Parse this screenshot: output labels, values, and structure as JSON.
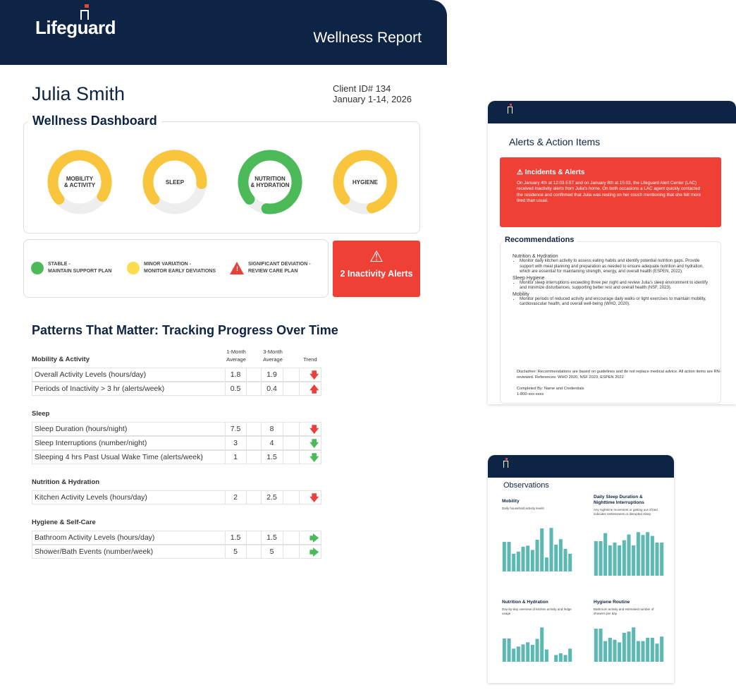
{
  "header": {
    "logo": "Lifeguard",
    "report_title": "Wellness Report"
  },
  "client": {
    "name": "Julia Smith",
    "id": "Client ID# 134",
    "period": "January 1-14, 2026"
  },
  "dashboard": {
    "title": "Wellness Dashboard",
    "gauges": [
      {
        "label1": "MOBILITY",
        "label2": "& ACTIVITY",
        "percent": 70,
        "color": "#f8c53c"
      },
      {
        "label1": "SLEEP",
        "label2": "",
        "percent": 62,
        "color": "#f8c53c"
      },
      {
        "label1": "NUTRITION",
        "label2": "& HYDRATION",
        "percent": 88,
        "color": "#4dba5a"
      },
      {
        "label1": "HYGIENE",
        "label2": "",
        "percent": 82,
        "color": "#f8c53c"
      }
    ]
  },
  "legend": [
    {
      "l1": "STABLE -",
      "l2": "MAINTAIN SUPPORT PLAN",
      "color": "#4dba5a"
    },
    {
      "l1": "MINOR VARIATION -",
      "l2": "MONITOR EARLY DEVIATIONS",
      "color": "#fddc4f"
    },
    {
      "l1": "SIGNIFICANT DEVIATION -",
      "l2": "REVIEW CARE PLAN",
      "color": "#e8413a"
    }
  ],
  "alert_button": {
    "icon": "warning-icon",
    "label": "2 Inactivity Alerts"
  },
  "patterns": {
    "title": "Patterns That Matter: Tracking Progress Over Time",
    "col1": [
      "1-Month",
      "Average"
    ],
    "col2": [
      "3-Month",
      "Average"
    ],
    "col3": "Trend",
    "sections": [
      {
        "name": "Mobility & Activity",
        "rows": [
          {
            "label": "Overall Activity Levels (hours/day)",
            "m1": "1.8",
            "m3": "1.9",
            "trend": "down",
            "color": "#e8413a"
          },
          {
            "label": "Periods of Inactivity > 3 hr (alerts/week)",
            "m1": "0.5",
            "m3": "0.4",
            "trend": "up",
            "color": "#e8413a"
          }
        ]
      },
      {
        "name": "Sleep",
        "rows": [
          {
            "label": "Sleep Duration (hours/night)",
            "m1": "7.5",
            "m3": "8",
            "trend": "down",
            "color": "#e8413a"
          },
          {
            "label": "Sleep Interruptions (number/night)",
            "m1": "3",
            "m3": "4",
            "trend": "down",
            "color": "#4dba5a"
          },
          {
            "label": "Sleeping 4 hrs Past Usual Wake Time (alerts/week)",
            "m1": "1",
            "m3": "1.5",
            "trend": "down",
            "color": "#4dba5a"
          }
        ]
      },
      {
        "name": "Nutrition & Hydration",
        "rows": [
          {
            "label": "Kitchen Activity Levels (hours/day)",
            "m1": "2",
            "m3": "2.5",
            "trend": "down",
            "color": "#e8413a"
          }
        ]
      },
      {
        "name": "Hygiene & Self-Care",
        "rows": [
          {
            "label": "Bathroom Activity Levels (hours/day)",
            "m1": "1.5",
            "m3": "1.5",
            "trend": "right",
            "color": "#4dba5a"
          },
          {
            "label": "Shower/Bath Events (number/week)",
            "m1": "5",
            "m3": "5",
            "trend": "right",
            "color": "#4dba5a"
          }
        ]
      }
    ]
  },
  "alerts_page": {
    "title": "Alerts & Action Items",
    "incidents_title": "Incidents & Alerts",
    "incidents_text": "On January 4th at 12:03 EST and on January 8th at 15:03, the Lifeguard Alert Center (LAC) received inactivity alerts from Julia's home. On both occasions a LAC agent quickly contacted the residence and confirmed that Julia was resting on her couch mentioning that she felt more tired than usual.",
    "recommendations_title": "Recommendations",
    "recommendations": [
      {
        "heading": "Nutrition & Hydration",
        "text": "Monitor daily kitchen activity to assess eating habits and identify potential nutrition gaps. Provide support with meal planning and preparation as needed to ensure adequate nutrition and hydration, which are essential for maintaining strength, energy, and overall health (ESPEN, 2022)."
      },
      {
        "heading": "Sleep Hygiene",
        "text": "Monitor sleep interruptions exceeding three per night and review Julia's sleep environment to identify and minimize disturbances, supporting better rest and overall health (NSF, 2023)."
      },
      {
        "heading": "Mobility",
        "text": "Monitor periods of reduced activity and encourage daily walks or light exercises to maintain mobility, cardiovascular health, and overall well-being (WHO, 2020)."
      }
    ],
    "disclaimer": "Disclaimer: Recommendations are based on guidelines and do not replace medical advice. All action items are RN-reviewed. References: WHO 2020, NSF 2023, ESPEN 2022",
    "completed_by": "Completed By: Name and Credentials",
    "phone": "1-800-xxx-xxxx"
  },
  "observations": {
    "title": "Observations",
    "charts": [
      {
        "title": "Mobility",
        "subtitle": "Daily household activity levels",
        "values": [
          5.5,
          5.5,
          3.3,
          3.7,
          4.6,
          4.8,
          4,
          5.9,
          8,
          2.6,
          8.1,
          5,
          6,
          4.2,
          3.3
        ]
      },
      {
        "title": "Daily Sleep Duration & Nighttime Interruptions",
        "subtitle": "Any nighttime movement or getting out of bed indicates restlessness or disrupted sleep.",
        "values": [
          7.3,
          7.3,
          9,
          6.4,
          7,
          6.4,
          7.5,
          8.7,
          6.4,
          9.2,
          8.6,
          9.2,
          8.4,
          7,
          7
        ]
      },
      {
        "title": "Nutrition & Hydration",
        "subtitle": "Day-by-day overview of kitchen activity and fridge usage",
        "values": [
          5.5,
          5.5,
          3.1,
          3.6,
          4.1,
          4.6,
          4,
          5.4,
          8.1,
          2.9,
          0,
          1.6,
          2,
          1.6,
          3.1
        ]
      },
      {
        "title": "Hygiene Routine",
        "subtitle": "Bathroom activity and estimated number of showers per day",
        "values": [
          8,
          8,
          5,
          5.8,
          5.3,
          4.7,
          7,
          7.3,
          8.3,
          5,
          5,
          5.8,
          5.8,
          4.4,
          6.1
        ]
      }
    ]
  },
  "colors": {
    "navy": "#0e2444",
    "alert_red": "#ee4035",
    "teal": "#5cb8b2"
  }
}
